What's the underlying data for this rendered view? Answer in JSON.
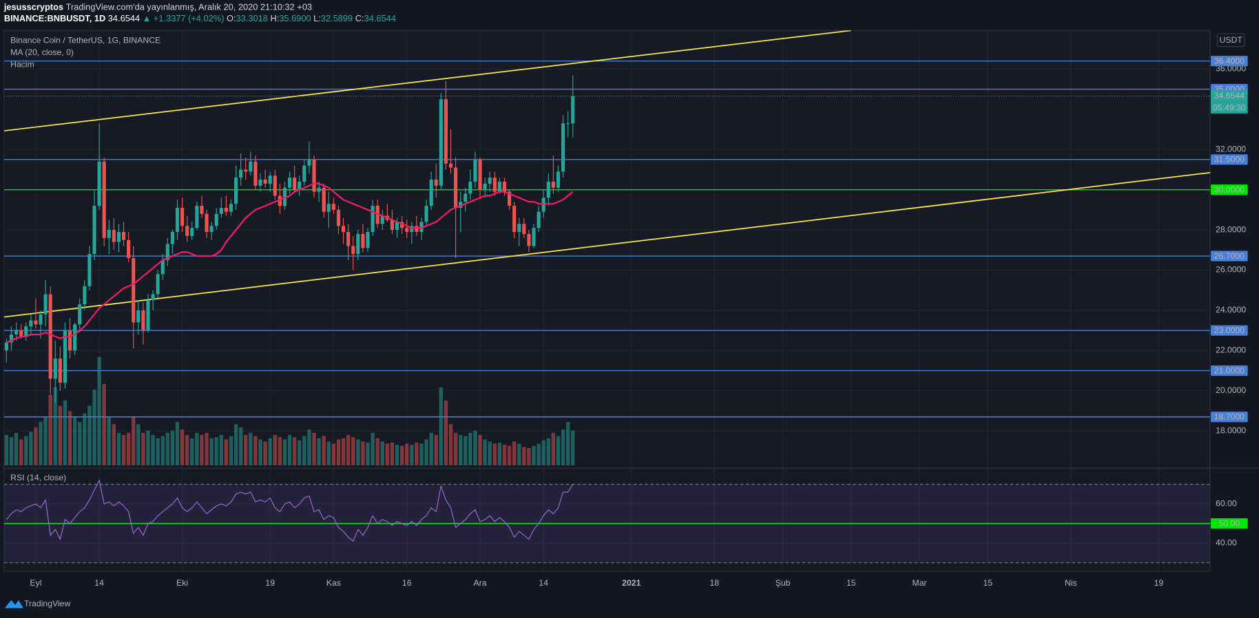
{
  "header": {
    "user": "jesusscryptos",
    "published": "TradingView.com'da yayınlanmış, Aralık 20, 2020 21:10:32 +03",
    "symbol": "BINANCE:BNBUSDT, 1D",
    "last": "34.6544",
    "arrow": "▲",
    "change": "+1.3377 (+4.02%)",
    "ohlc": [
      {
        "key": "O:",
        "value": "33.3018"
      },
      {
        "key": "H:",
        "value": "35.6900"
      },
      {
        "key": "L:",
        "value": "32.5899"
      },
      {
        "key": "C:",
        "value": "34.6544"
      }
    ]
  },
  "chart_data": [
    {
      "type": "candlestick",
      "title": "Binance Coin / TetherUS, 1G, BINANCE",
      "currency": "USDT",
      "xlim": [
        -0.5,
        246.5
      ],
      "xticks": [
        {
          "value": 6,
          "label": "Eyl"
        },
        {
          "value": 19,
          "label": "14"
        },
        {
          "value": 36,
          "label": "Eki"
        },
        {
          "value": 54,
          "label": "19"
        },
        {
          "value": 67,
          "label": "Kas"
        },
        {
          "value": 82,
          "label": "16"
        },
        {
          "value": 97,
          "label": "Ara"
        },
        {
          "value": 110,
          "label": "14"
        },
        {
          "value": 128,
          "label": "2021"
        },
        {
          "value": 145,
          "label": "18"
        },
        {
          "value": 159,
          "label": "Şub"
        },
        {
          "value": 173,
          "label": "15"
        },
        {
          "value": 187,
          "label": "Mar"
        },
        {
          "value": 201,
          "label": "15"
        },
        {
          "value": 218,
          "label": "Nis"
        },
        {
          "value": 236,
          "label": "19"
        }
      ],
      "ylim": [
        16.29,
        37.92
      ],
      "yticks": [
        {
          "value": 18,
          "label": "18.0000"
        },
        {
          "value": 20,
          "label": "20.0000"
        },
        {
          "value": 22,
          "label": "22.0000"
        },
        {
          "value": 24,
          "label": "24.0000"
        },
        {
          "value": 26,
          "label": "26.0000"
        },
        {
          "value": 28,
          "label": "28.0000"
        },
        {
          "value": 32,
          "label": "32.0000"
        },
        {
          "value": 36,
          "label": "36.0000"
        }
      ],
      "grid": true,
      "up_color": "#26a69a",
      "down_color": "#ef5350",
      "candles": [
        [
          22.0,
          22.6,
          21.4,
          22.4
        ],
        [
          22.4,
          23.2,
          22.0,
          22.8
        ],
        [
          22.8,
          23.4,
          22.5,
          23.0
        ],
        [
          23.0,
          23.3,
          22.6,
          22.7
        ],
        [
          22.7,
          23.4,
          22.5,
          23.2
        ],
        [
          23.2,
          23.8,
          22.8,
          23.5
        ],
        [
          23.5,
          24.6,
          23.1,
          23.3
        ],
        [
          23.3,
          24.0,
          22.6,
          23.8
        ],
        [
          23.8,
          25.5,
          23.2,
          24.8
        ],
        [
          24.8,
          25.2,
          19.8,
          20.6
        ],
        [
          20.6,
          22.5,
          19.4,
          21.6
        ],
        [
          21.6,
          22.2,
          20.0,
          20.4
        ],
        [
          20.4,
          23.4,
          20.1,
          23.0
        ],
        [
          23.0,
          23.6,
          21.6,
          22.0
        ],
        [
          22.0,
          23.4,
          21.8,
          23.3
        ],
        [
          23.3,
          24.6,
          22.9,
          24.3
        ],
        [
          24.3,
          25.5,
          24.0,
          25.2
        ],
        [
          25.2,
          27.2,
          25.0,
          26.8
        ],
        [
          26.8,
          30.0,
          26.5,
          29.2
        ],
        [
          29.2,
          33.3,
          29.0,
          31.4
        ],
        [
          31.4,
          31.6,
          27.2,
          27.6
        ],
        [
          27.6,
          28.5,
          26.8,
          28.0
        ],
        [
          28.0,
          28.6,
          27.0,
          27.4
        ],
        [
          27.4,
          28.3,
          26.9,
          27.9
        ],
        [
          27.9,
          28.4,
          27.2,
          27.5
        ],
        [
          27.5,
          27.9,
          26.4,
          26.6
        ],
        [
          26.6,
          27.2,
          22.1,
          23.4
        ],
        [
          23.4,
          24.5,
          22.8,
          24.0
        ],
        [
          24.0,
          24.4,
          22.3,
          23.0
        ],
        [
          23.0,
          24.8,
          22.9,
          24.5
        ],
        [
          24.5,
          25.0,
          24.0,
          24.8
        ],
        [
          24.8,
          26.0,
          24.6,
          25.8
        ],
        [
          25.8,
          26.8,
          25.5,
          26.5
        ],
        [
          26.5,
          27.6,
          26.2,
          27.3
        ],
        [
          27.3,
          28.0,
          26.8,
          27.9
        ],
        [
          27.9,
          29.5,
          27.5,
          29.1
        ],
        [
          29.1,
          29.6,
          27.9,
          28.2
        ],
        [
          28.2,
          28.7,
          27.4,
          27.7
        ],
        [
          27.7,
          28.4,
          27.5,
          28.1
        ],
        [
          28.1,
          29.4,
          28.0,
          29.2
        ],
        [
          29.2,
          29.7,
          28.6,
          28.8
        ],
        [
          28.8,
          29.0,
          27.6,
          27.9
        ],
        [
          27.9,
          28.4,
          27.5,
          28.2
        ],
        [
          28.2,
          29.1,
          28.0,
          28.8
        ],
        [
          28.8,
          29.6,
          28.6,
          29.1
        ],
        [
          29.1,
          29.7,
          28.7,
          28.9
        ],
        [
          28.9,
          29.5,
          28.7,
          29.3
        ],
        [
          29.3,
          31.2,
          29.0,
          30.6
        ],
        [
          30.6,
          31.8,
          30.2,
          31.0
        ],
        [
          31.0,
          31.6,
          30.5,
          30.9
        ],
        [
          30.9,
          31.9,
          30.7,
          31.4
        ],
        [
          31.4,
          31.7,
          30.0,
          30.2
        ],
        [
          30.2,
          30.8,
          29.9,
          30.5
        ],
        [
          30.5,
          31.0,
          30.1,
          30.3
        ],
        [
          30.3,
          30.9,
          29.9,
          30.7
        ],
        [
          30.7,
          31.0,
          29.5,
          29.7
        ],
        [
          29.7,
          30.3,
          28.8,
          29.2
        ],
        [
          29.2,
          30.4,
          29.0,
          30.1
        ],
        [
          30.1,
          30.9,
          29.8,
          30.6
        ],
        [
          30.6,
          31.2,
          29.9,
          30.0
        ],
        [
          30.0,
          30.7,
          29.7,
          30.4
        ],
        [
          30.4,
          31.5,
          30.2,
          31.2
        ],
        [
          31.2,
          32.4,
          30.8,
          31.5
        ],
        [
          31.5,
          31.7,
          29.6,
          29.9
        ],
        [
          29.9,
          30.4,
          29.4,
          30.1
        ],
        [
          30.1,
          30.3,
          28.6,
          28.9
        ],
        [
          28.9,
          29.9,
          28.1,
          29.3
        ],
        [
          29.3,
          29.6,
          28.8,
          29.0
        ],
        [
          29.0,
          29.2,
          27.8,
          28.2
        ],
        [
          28.2,
          28.6,
          27.3,
          27.9
        ],
        [
          27.9,
          28.3,
          26.5,
          27.2
        ],
        [
          27.2,
          27.7,
          26.0,
          26.8
        ],
        [
          26.8,
          28.0,
          26.5,
          27.8
        ],
        [
          27.8,
          28.3,
          26.9,
          27.1
        ],
        [
          27.1,
          28.1,
          26.9,
          27.9
        ],
        [
          27.9,
          29.5,
          27.7,
          29.2
        ],
        [
          29.2,
          29.5,
          28.1,
          28.3
        ],
        [
          28.3,
          29.0,
          28.0,
          28.7
        ],
        [
          28.7,
          29.3,
          28.4,
          28.5
        ],
        [
          28.5,
          29.0,
          27.8,
          28.0
        ],
        [
          28.0,
          28.6,
          27.6,
          28.4
        ],
        [
          28.4,
          28.7,
          27.8,
          28.1
        ],
        [
          28.1,
          28.5,
          27.6,
          27.9
        ],
        [
          27.9,
          28.4,
          27.3,
          28.2
        ],
        [
          28.2,
          28.7,
          27.7,
          27.9
        ],
        [
          27.9,
          28.6,
          27.5,
          28.4
        ],
        [
          28.4,
          29.5,
          28.2,
          29.2
        ],
        [
          29.2,
          30.9,
          29.0,
          30.5
        ],
        [
          30.5,
          31.3,
          29.6,
          30.2
        ],
        [
          30.2,
          34.8,
          30.0,
          34.5
        ],
        [
          34.5,
          35.4,
          31.0,
          31.3
        ],
        [
          31.3,
          33.0,
          30.8,
          31.1
        ],
        [
          31.1,
          31.6,
          26.6,
          29.1
        ],
        [
          29.1,
          29.9,
          27.9,
          29.4
        ],
        [
          29.4,
          30.1,
          28.9,
          29.8
        ],
        [
          29.8,
          31.0,
          29.5,
          30.4
        ],
        [
          30.4,
          31.9,
          30.1,
          31.5
        ],
        [
          31.5,
          31.6,
          29.6,
          30.0
        ],
        [
          30.0,
          30.6,
          29.6,
          30.3
        ],
        [
          30.3,
          30.9,
          29.9,
          30.6
        ],
        [
          30.6,
          30.9,
          29.7,
          29.9
        ],
        [
          29.9,
          30.6,
          29.8,
          30.4
        ],
        [
          30.4,
          30.6,
          29.7,
          29.9
        ],
        [
          29.9,
          30.0,
          29.0,
          29.2
        ],
        [
          29.2,
          29.4,
          27.6,
          27.9
        ],
        [
          27.9,
          28.6,
          27.2,
          28.3
        ],
        [
          28.3,
          28.6,
          27.6,
          27.8
        ],
        [
          27.8,
          28.0,
          26.9,
          27.2
        ],
        [
          27.2,
          28.3,
          27.1,
          28.1
        ],
        [
          28.1,
          29.2,
          27.9,
          28.9
        ],
        [
          28.9,
          30.0,
          28.6,
          29.6
        ],
        [
          29.6,
          30.8,
          29.2,
          30.4
        ],
        [
          30.4,
          31.7,
          29.8,
          30.1
        ],
        [
          30.1,
          31.2,
          29.9,
          30.9
        ],
        [
          30.9,
          33.7,
          30.6,
          33.3
        ],
        [
          33.3,
          33.9,
          32.6,
          33.3
        ],
        [
          33.3018,
          35.69,
          32.5899,
          34.6544
        ]
      ],
      "ma": {
        "name": "MA (20, close, 0)",
        "color": "#e91e63",
        "values": [
          22.4,
          22.5,
          22.6,
          22.7,
          22.7,
          22.8,
          22.8,
          22.8,
          22.9,
          22.8,
          22.7,
          22.6,
          22.7,
          22.7,
          22.8,
          23.0,
          23.2,
          23.5,
          23.8,
          24.1,
          24.3,
          24.5,
          24.7,
          24.9,
          25.1,
          25.2,
          25.3,
          25.5,
          25.7,
          25.9,
          26.1,
          26.3,
          26.5,
          26.6,
          26.7,
          26.8,
          26.9,
          26.9,
          26.8,
          26.7,
          26.7,
          26.7,
          26.7,
          26.8,
          27.0,
          27.4,
          27.7,
          28.0,
          28.3,
          28.6,
          28.8,
          29.0,
          29.1,
          29.2,
          29.3,
          29.4,
          29.5,
          29.6,
          29.7,
          29.9,
          30.0,
          30.1,
          30.2,
          30.3,
          30.3,
          30.2,
          30.1,
          29.9,
          29.7,
          29.5,
          29.4,
          29.3,
          29.2,
          29.1,
          29.0,
          28.9,
          28.8,
          28.7,
          28.6,
          28.5,
          28.4,
          28.3,
          28.2,
          28.1,
          28.1,
          28.1,
          28.2,
          28.3,
          28.4,
          28.6,
          28.8,
          29.0,
          29.1,
          29.2,
          29.3,
          29.4,
          29.5,
          29.6,
          29.7,
          29.7,
          29.8,
          29.9,
          29.9,
          29.8,
          29.7,
          29.6,
          29.5,
          29.4,
          29.4,
          29.3,
          29.3,
          29.3,
          29.3,
          29.4,
          29.5,
          29.7,
          29.9
        ]
      },
      "volume": {
        "name": "Hacim",
        "values": [
          28,
          26,
          30,
          24,
          27,
          31,
          35,
          40,
          45,
          65,
          72,
          55,
          60,
          50,
          45,
          40,
          48,
          55,
          70,
          100,
          75,
          45,
          38,
          30,
          28,
          30,
          45,
          38,
          30,
          32,
          28,
          25,
          27,
          30,
          32,
          40,
          33,
          28,
          25,
          30,
          28,
          30,
          25,
          26,
          28,
          24,
          27,
          38,
          35,
          28,
          30,
          27,
          24,
          22,
          25,
          28,
          26,
          24,
          28,
          26,
          23,
          27,
          33,
          30,
          25,
          27,
          22,
          20,
          24,
          25,
          28,
          26,
          24,
          22,
          21,
          30,
          25,
          22,
          20,
          21,
          19,
          18,
          20,
          19,
          21,
          20,
          24,
          30,
          28,
          72,
          60,
          38,
          30,
          28,
          27,
          30,
          32,
          28,
          24,
          22,
          20,
          21,
          19,
          18,
          22,
          20,
          17,
          16,
          18,
          20,
          23,
          25,
          30,
          27,
          33,
          40,
          32
        ]
      },
      "levels": [
        {
          "value": 36.4,
          "label": "36.4000",
          "color": "#4a7fd4",
          "label_color": "#ffffff"
        },
        {
          "value": 35,
          "label": "35.0000",
          "color": "#4a7fd4",
          "label_color": "#ffffff"
        },
        {
          "value": 31.5,
          "label": "31.5000",
          "color": "#4a7fd4",
          "label_color": "#ffffff"
        },
        {
          "value": 30,
          "label": "30.0000",
          "color": "#00e600",
          "label_color": "#000000"
        },
        {
          "value": 26.7,
          "label": "26.7000",
          "color": "#4a7fd4",
          "label_color": "#ffffff"
        },
        {
          "value": 23,
          "label": "23.0000",
          "color": "#4a7fd4",
          "label_color": "#ffffff"
        },
        {
          "value": 21,
          "label": "21.0000",
          "color": "#4a7fd4",
          "label_color": "#ffffff"
        },
        {
          "value": 18.7,
          "label": "18.7000",
          "color": "#4a7fd4",
          "label_color": "#ffffff"
        }
      ],
      "last_price": {
        "value": 34.6544,
        "label": "34.6544",
        "countdown": "05:49:30"
      },
      "trendlines": [
        {
          "color": "#ffeb3b",
          "points": [
            [
              -0.5,
              32.93
            ],
            [
              173,
              37.92
            ]
          ]
        },
        {
          "color": "#ffeb3b",
          "points": [
            [
              -0.5,
              23.67
            ],
            [
              246.5,
              30.85
            ]
          ]
        }
      ]
    },
    {
      "type": "line",
      "title": "RSI (14, close)",
      "color": "#9c6bd8",
      "values": [
        52,
        55,
        57,
        56,
        58,
        59,
        60,
        58,
        62,
        44,
        47,
        42,
        52,
        50,
        53,
        56,
        58,
        62,
        67,
        72,
        60,
        61,
        59,
        61,
        59,
        56,
        45,
        48,
        44,
        50,
        51,
        54,
        56,
        58,
        60,
        63,
        58,
        56,
        58,
        61,
        58,
        55,
        57,
        59,
        60,
        59,
        61,
        65,
        66,
        65,
        66,
        61,
        62,
        61,
        63,
        58,
        56,
        60,
        61,
        58,
        60,
        63,
        64,
        56,
        57,
        52,
        54,
        53,
        48,
        46,
        43,
        41,
        47,
        44,
        48,
        54,
        50,
        52,
        51,
        49,
        51,
        50,
        49,
        51,
        49,
        52,
        54,
        58,
        56,
        69,
        62,
        58,
        48,
        50,
        52,
        55,
        57,
        51,
        52,
        54,
        51,
        53,
        51,
        48,
        43,
        46,
        44,
        42,
        47,
        50,
        54,
        57,
        55,
        58,
        66,
        66,
        70
      ],
      "ylim": [
        26.5,
        77.6
      ],
      "yticks": [
        {
          "value": 40,
          "label": "40.00"
        },
        {
          "value": 60,
          "label": "60.00"
        }
      ],
      "levels": [
        {
          "value": 50,
          "label": "50.00",
          "color": "#00e600",
          "label_color": "#000000"
        }
      ],
      "bands": [
        70,
        30
      ]
    }
  ],
  "footer": {
    "brand": "TradingView"
  }
}
